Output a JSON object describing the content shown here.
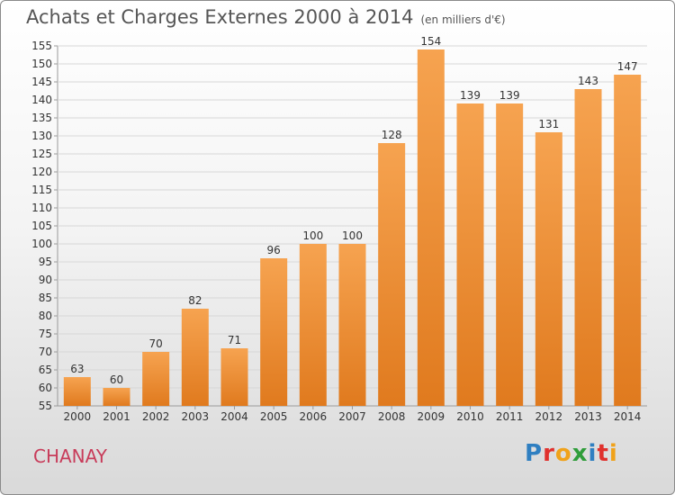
{
  "header": {
    "title": "Achats et Charges Externes 2000 à 2014",
    "subtitle": "(en milliers d'€)"
  },
  "footer": {
    "commune": "CHANAY",
    "logo_text": "Proxiti"
  },
  "colors": {
    "bar_light": "#f6a350",
    "bar_dark": "#e07a1e",
    "commune": "#c83c5a",
    "logo_p": "#2f7fc1",
    "logo_r": "#e0312d",
    "logo_o": "#f0a21a",
    "logo_x": "#2f9d3a",
    "logo_i": "#2f7fc1",
    "logo_t": "#e0312d",
    "logo_i2": "#f0a21a"
  },
  "chart_data": {
    "type": "bar",
    "categories": [
      "2000",
      "2001",
      "2002",
      "2003",
      "2004",
      "2005",
      "2006",
      "2007",
      "2008",
      "2009",
      "2010",
      "2011",
      "2012",
      "2013",
      "2014"
    ],
    "values": [
      63,
      60,
      70,
      82,
      71,
      96,
      100,
      100,
      128,
      154,
      139,
      139,
      131,
      143,
      147
    ],
    "ylim": [
      55,
      155
    ],
    "yticks": [
      55,
      60,
      65,
      70,
      75,
      80,
      85,
      90,
      95,
      100,
      105,
      110,
      115,
      120,
      125,
      130,
      135,
      140,
      145,
      150,
      155
    ],
    "grid": true,
    "data_labels": true
  }
}
